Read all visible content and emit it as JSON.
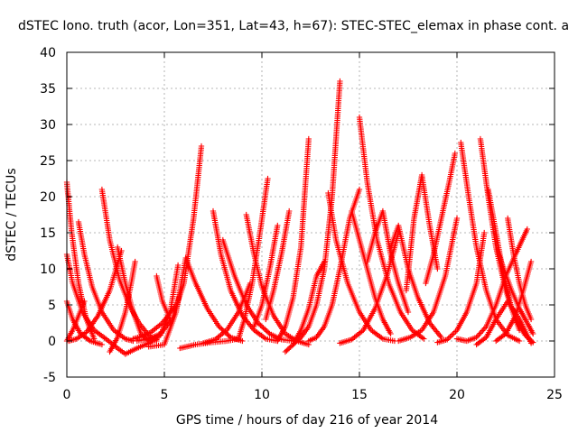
{
  "chart_data": {
    "type": "scatter",
    "title": "dSTEC Iono. truth (acor, Lon=351, Lat=43, h=67): STEC-STEC_elemax in phase cont. a",
    "xlabel": "GPS time / hours of day 216 of year 2014",
    "ylabel": "dSTEC  / TECUs",
    "xlim": [
      0,
      25
    ],
    "ylim": [
      -5,
      40
    ],
    "xticks": [
      0,
      5,
      10,
      15,
      20,
      25
    ],
    "yticks": [
      -5,
      0,
      5,
      10,
      15,
      20,
      25,
      30,
      35,
      40
    ],
    "grid": true,
    "legend": "none",
    "marker": "+",
    "color": "#ff0000",
    "series": [
      {
        "x": [
          0.0,
          0.25,
          0.6,
          1.0,
          1.4
        ],
        "y": [
          22.0,
          15.0,
          8.0,
          3.0,
          0.3
        ]
      },
      {
        "x": [
          0.0,
          0.3,
          0.8,
          1.4,
          2.0,
          2.6,
          3.0
        ],
        "y": [
          12.0,
          8.0,
          4.0,
          1.5,
          0.3,
          -1.0,
          -1.8
        ]
      },
      {
        "x": [
          0.0,
          0.3,
          0.7,
          1.2,
          1.8
        ],
        "y": [
          5.5,
          3.0,
          1.0,
          0.0,
          -0.5
        ]
      },
      {
        "x": [
          0.0,
          0.3,
          0.6,
          0.9
        ],
        "y": [
          0.0,
          1.5,
          3.5,
          5.5
        ]
      },
      {
        "x": [
          0.1,
          0.5,
          1.0,
          1.6,
          2.2,
          2.8
        ],
        "y": [
          0.0,
          0.3,
          1.2,
          3.5,
          7.0,
          12.5
        ]
      },
      {
        "x": [
          0.6,
          0.9,
          1.3,
          1.8,
          2.4,
          3.0,
          3.4
        ],
        "y": [
          16.5,
          12.0,
          7.5,
          4.0,
          1.5,
          0.3,
          0.0
        ]
      },
      {
        "x": [
          1.8,
          2.2,
          2.7,
          3.2,
          3.7,
          4.2,
          4.6
        ],
        "y": [
          21.0,
          14.0,
          8.5,
          5.0,
          2.5,
          0.8,
          0.0
        ]
      },
      {
        "x": [
          2.6,
          3.0,
          3.4,
          3.8,
          4.2,
          4.6
        ],
        "y": [
          13.0,
          8.0,
          4.0,
          1.0,
          0.0,
          0.2
        ]
      },
      {
        "x": [
          2.2,
          2.6,
          3.0,
          3.3,
          3.5
        ],
        "y": [
          -1.5,
          0.5,
          4.0,
          8.0,
          11.0
        ]
      },
      {
        "x": [
          3.4,
          3.8,
          4.3,
          4.9,
          5.6
        ],
        "y": [
          0.3,
          0.6,
          1.2,
          2.5,
          5.0
        ]
      },
      {
        "x": [
          4.6,
          4.9,
          5.3
        ],
        "y": [
          9.0,
          5.5,
          3.0
        ]
      },
      {
        "x": [
          3.0,
          3.6,
          4.2,
          4.8,
          5.3,
          5.7
        ],
        "y": [
          -1.8,
          -1.0,
          -0.3,
          0.8,
          4.0,
          10.5
        ]
      },
      {
        "x": [
          3.6,
          4.2,
          4.8,
          5.4,
          6.0,
          6.5,
          6.9
        ],
        "y": [
          0.0,
          0.3,
          1.0,
          3.0,
          8.0,
          17.0,
          27.0
        ]
      },
      {
        "x": [
          4.2,
          5.0,
          5.6,
          6.1
        ],
        "y": [
          -0.8,
          -0.5,
          4.0,
          11.5
        ]
      },
      {
        "x": [
          6.1,
          6.6,
          7.2,
          7.8,
          8.4,
          9.0
        ],
        "y": [
          11.5,
          8.0,
          4.5,
          2.0,
          0.5,
          0.0
        ]
      },
      {
        "x": [
          5.8,
          6.6,
          7.4,
          8.2,
          8.8
        ],
        "y": [
          -1.0,
          -0.5,
          -0.2,
          0.0,
          0.3
        ]
      },
      {
        "x": [
          7.5,
          7.9,
          8.4,
          9.0,
          9.6,
          10.2,
          10.8
        ],
        "y": [
          18.0,
          12.0,
          7.0,
          3.5,
          1.5,
          0.3,
          0.0
        ]
      },
      {
        "x": [
          8.0,
          8.6,
          9.2,
          9.8,
          10.4,
          11.0,
          11.6
        ],
        "y": [
          14.0,
          9.0,
          5.0,
          2.5,
          1.0,
          0.2,
          0.0
        ]
      },
      {
        "x": [
          7.0,
          7.6,
          8.2,
          8.8,
          9.4
        ],
        "y": [
          -0.3,
          0.2,
          1.5,
          4.0,
          8.0
        ]
      },
      {
        "x": [
          8.8,
          9.1,
          9.5,
          9.9,
          10.3
        ],
        "y": [
          0.3,
          3.0,
          8.0,
          15.0,
          22.5
        ]
      },
      {
        "x": [
          9.2,
          9.6,
          10.0,
          10.6,
          11.2,
          11.8,
          12.4
        ],
        "y": [
          17.5,
          12.0,
          7.5,
          3.5,
          1.0,
          0.0,
          -0.5
        ]
      },
      {
        "x": [
          9.6,
          10.0,
          10.4,
          10.8
        ],
        "y": [
          2.0,
          5.0,
          10.0,
          16.0
        ]
      },
      {
        "x": [
          10.2,
          10.6,
          11.0,
          11.4
        ],
        "y": [
          3.0,
          7.0,
          12.0,
          18.0
        ]
      },
      {
        "x": [
          10.8,
          11.2,
          11.6,
          12.0,
          12.4
        ],
        "y": [
          0.0,
          2.0,
          6.0,
          13.0,
          28.0
        ]
      },
      {
        "x": [
          11.2,
          11.6,
          12.0,
          12.4,
          12.8,
          13.2
        ],
        "y": [
          -1.5,
          -0.5,
          1.5,
          4.5,
          9.0,
          11.0
        ]
      },
      {
        "x": [
          11.6,
          12.0,
          12.4,
          12.8,
          13.2,
          13.6,
          14.0
        ],
        "y": [
          -0.5,
          0.5,
          2.0,
          5.0,
          10.0,
          20.0,
          36.0
        ]
      },
      {
        "x": [
          12.4,
          12.8,
          13.2,
          13.6,
          14.0,
          14.5,
          15.0
        ],
        "y": [
          0.0,
          0.5,
          2.0,
          5.0,
          10.0,
          17.0,
          21.0
        ]
      },
      {
        "x": [
          13.4,
          13.8,
          14.4,
          15.0,
          15.6,
          16.2,
          16.8
        ],
        "y": [
          20.5,
          14.0,
          8.0,
          4.0,
          1.5,
          0.3,
          0.0
        ]
      },
      {
        "x": [
          14.0,
          14.6,
          15.2,
          15.8,
          16.4,
          17.0
        ],
        "y": [
          -0.3,
          0.2,
          1.5,
          4.5,
          9.0,
          15.0
        ]
      },
      {
        "x": [
          15.0,
          15.4,
          15.9,
          16.5,
          17.1,
          17.7,
          18.3
        ],
        "y": [
          31.0,
          22.0,
          14.0,
          8.0,
          4.0,
          1.5,
          0.3
        ]
      },
      {
        "x": [
          14.6,
          15.0,
          15.4,
          15.8,
          16.2,
          16.6
        ],
        "y": [
          18.0,
          14.0,
          10.0,
          6.0,
          3.0,
          1.0
        ]
      },
      {
        "x": [
          15.4,
          15.8,
          16.2,
          16.6,
          17.0,
          17.5
        ],
        "y": [
          11.0,
          15.0,
          18.0,
          12.0,
          8.0,
          4.0
        ]
      },
      {
        "x": [
          16.6,
          17.0,
          17.5,
          18.0,
          18.6,
          19.2
        ],
        "y": [
          13.0,
          16.0,
          10.0,
          6.0,
          2.5,
          0.5
        ]
      },
      {
        "x": [
          17.4,
          17.8,
          18.2,
          18.6,
          19.0
        ],
        "y": [
          7.0,
          17.0,
          23.0,
          16.0,
          10.0
        ]
      },
      {
        "x": [
          17.0,
          17.6,
          18.2,
          18.8,
          19.4,
          20.0
        ],
        "y": [
          0.0,
          0.5,
          1.5,
          4.0,
          9.0,
          17.0
        ]
      },
      {
        "x": [
          18.4,
          18.8,
          19.2,
          19.6,
          19.9
        ],
        "y": [
          8.0,
          12.0,
          17.0,
          22.0,
          26.0
        ]
      },
      {
        "x": [
          19.0,
          19.5,
          20.0,
          20.5,
          21.0,
          21.4
        ],
        "y": [
          -0.2,
          0.2,
          1.5,
          4.0,
          8.0,
          15.0
        ]
      },
      {
        "x": [
          20.2,
          20.6,
          21.0,
          21.5,
          22.0,
          22.6,
          23.2
        ],
        "y": [
          27.5,
          20.0,
          13.0,
          7.0,
          3.0,
          0.8,
          0.0
        ]
      },
      {
        "x": [
          20.0,
          20.5,
          21.0,
          21.5,
          22.0,
          22.5,
          23.0,
          23.6
        ],
        "y": [
          0.3,
          0.0,
          0.5,
          2.0,
          5.0,
          9.0,
          12.0,
          15.5
        ]
      },
      {
        "x": [
          21.2,
          21.6,
          22.0,
          22.5,
          23.0,
          23.5,
          23.9
        ],
        "y": [
          28.0,
          20.0,
          13.0,
          7.0,
          3.0,
          0.8,
          -0.2
        ]
      },
      {
        "x": [
          21.6,
          22.0,
          22.4,
          22.8,
          23.2
        ],
        "y": [
          21.0,
          15.0,
          9.0,
          4.5,
          1.5
        ]
      },
      {
        "x": [
          22.0,
          22.4,
          22.8,
          23.2,
          23.6,
          23.9
        ],
        "y": [
          13.0,
          10.0,
          7.0,
          4.5,
          2.5,
          1.0
        ]
      },
      {
        "x": [
          22.6,
          22.9,
          23.2,
          23.5,
          23.8
        ],
        "y": [
          17.0,
          12.0,
          8.0,
          5.0,
          3.0
        ]
      },
      {
        "x": [
          22.0,
          22.5,
          23.0,
          23.4,
          23.8
        ],
        "y": [
          0.0,
          1.0,
          3.5,
          7.0,
          11.0
        ]
      },
      {
        "x": [
          21.0,
          21.5,
          22.0,
          22.6,
          23.2,
          23.8
        ],
        "y": [
          -0.5,
          0.5,
          3.0,
          5.5,
          3.0,
          -0.3
        ]
      }
    ]
  }
}
